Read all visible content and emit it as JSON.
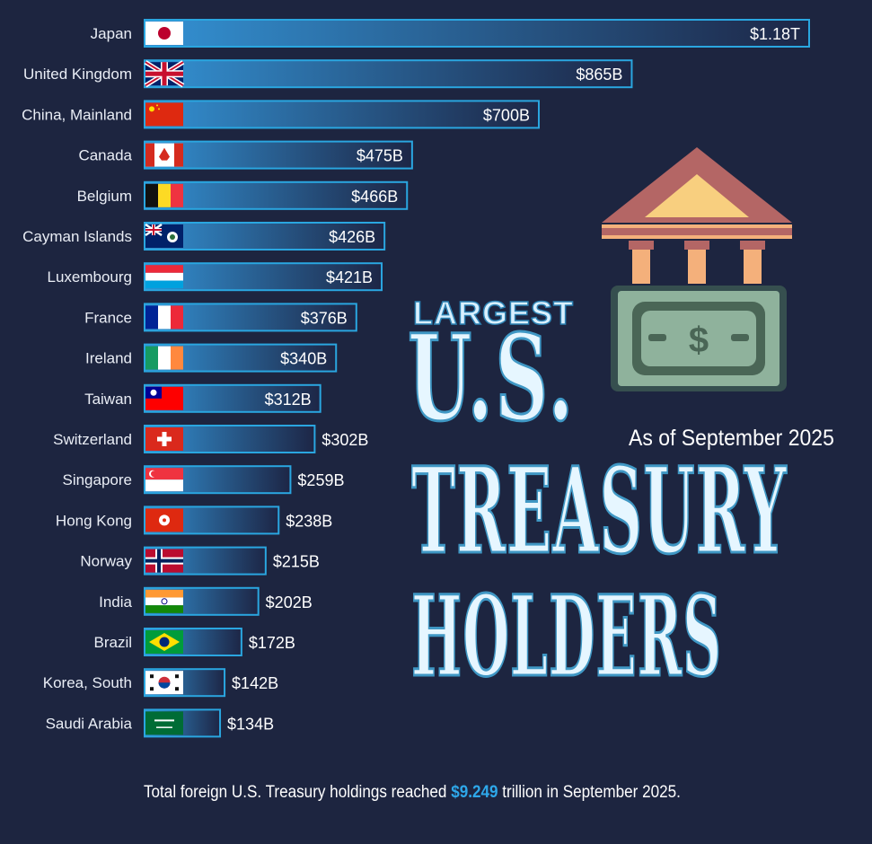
{
  "title": {
    "line1": "LARGEST",
    "line2": "U.S.",
    "line3": "TREASURY",
    "line4": "HOLDERS",
    "subtitle": "As of September 2025"
  },
  "footer": {
    "prefix": "Total foreign U.S. Treasury holdings reached ",
    "highlight": "$9.249",
    "suffix": " trillion in September 2025."
  },
  "colors": {
    "background": "#1d2540",
    "bar_light": "#2d86c4",
    "bar_dark": "#1e2a4a",
    "bar_border": "#2aa6e0",
    "highlight": "#2ea8ea"
  },
  "chart_data": {
    "type": "bar",
    "orientation": "horizontal",
    "title": "Largest U.S. Treasury Holders",
    "subtitle": "As of September 2025",
    "unit": "USD billions",
    "categories": [
      "Japan",
      "United Kingdom",
      "China, Mainland",
      "Canada",
      "Belgium",
      "Cayman Islands",
      "Luxembourg",
      "France",
      "Ireland",
      "Taiwan",
      "Switzerland",
      "Singapore",
      "Hong Kong",
      "Norway",
      "India",
      "Brazil",
      "Korea, South",
      "Saudi Arabia"
    ],
    "values": [
      1180,
      865,
      700,
      475,
      466,
      426,
      421,
      376,
      340,
      312,
      302,
      259,
      238,
      215,
      202,
      172,
      142,
      134
    ],
    "labels": [
      "$1.18T",
      "$865B",
      "$700B",
      "$475B",
      "$466B",
      "$426B",
      "$421B",
      "$376B",
      "$340B",
      "$312B",
      "$302B",
      "$259B",
      "$238B",
      "$215B",
      "$202B",
      "$172B",
      "$142B",
      "$134B"
    ],
    "flags": [
      "japan",
      "uk",
      "china",
      "canada",
      "belgium",
      "cayman",
      "luxembourg",
      "france",
      "ireland",
      "taiwan",
      "switzerland",
      "singapore",
      "hongkong",
      "norway",
      "india",
      "brazil",
      "korea",
      "saudi"
    ],
    "xlim": [
      0,
      1180
    ],
    "grid": false,
    "legend": "none"
  }
}
